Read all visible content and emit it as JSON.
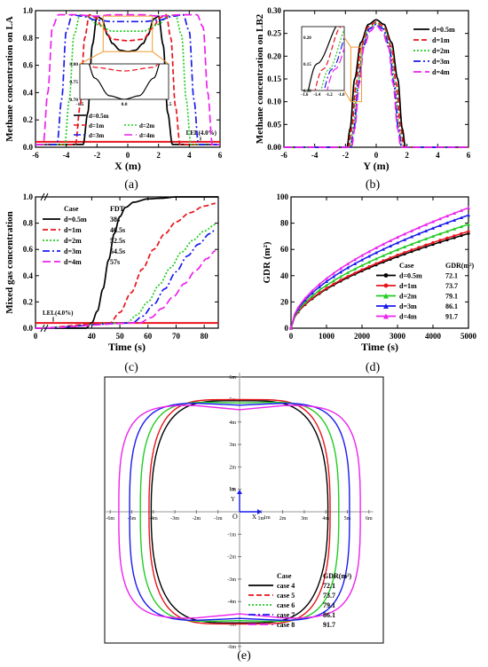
{
  "figure": {
    "panels": [
      "(a)",
      "(b)",
      "(c)",
      "(d)",
      "(e)"
    ]
  },
  "colors": {
    "d05": "#000000",
    "d1": "#e8141c",
    "d2": "#22cc22",
    "d3": "#1a1aee",
    "d4": "#ee22ee",
    "lel": "#e8141c",
    "inset_box": "#f29a2e"
  },
  "chart_data": [
    {
      "id": "a",
      "type": "line",
      "xlabel": "X (m)",
      "ylabel": "Methane concentration on LA",
      "xlim": [
        -6,
        6
      ],
      "ylim": [
        0,
        1.0
      ],
      "xticks": [
        "-6",
        "-4",
        "-2",
        "0",
        "2",
        "4",
        "6"
      ],
      "yticks": [
        "0.0",
        "0.2",
        "0.4",
        "0.6",
        "0.8",
        "1.0"
      ],
      "legend": [
        "d=0.5m",
        "d=1m",
        "d=2m",
        "d=3m",
        "d=4m"
      ],
      "annotation": "LEL(4.0%)",
      "lel_value": 0.04,
      "inset": {
        "xticks": [
          "-1.5",
          "0.0",
          "1.5"
        ],
        "yticks": [
          "0.70",
          "0.75",
          "0.80"
        ],
        "xlim": [
          -1.5,
          1.5
        ],
        "ylim": [
          0.7,
          0.8
        ]
      },
      "series": [
        {
          "name": "d=0.5m",
          "x": [
            -6,
            -2.9,
            -2.6,
            -2.3,
            -2.0,
            -1.7,
            -1.3,
            -1.0,
            -0.5,
            0,
            0.5,
            1.0,
            1.3,
            1.7,
            2.0,
            2.3,
            2.6,
            2.9,
            6
          ],
          "y": [
            0.02,
            0.02,
            0.25,
            0.75,
            0.96,
            0.94,
            0.82,
            0.76,
            0.71,
            0.7,
            0.71,
            0.76,
            0.82,
            0.94,
            0.96,
            0.75,
            0.25,
            0.02,
            0.02
          ]
        },
        {
          "name": "d=1m",
          "x": [
            -6,
            -3.4,
            -3.1,
            -2.8,
            -2.5,
            -2.1,
            -1.6,
            -1.0,
            0,
            1.0,
            1.6,
            2.1,
            2.5,
            2.8,
            3.1,
            3.4,
            6
          ],
          "y": [
            0.02,
            0.02,
            0.3,
            0.8,
            0.97,
            0.95,
            0.87,
            0.79,
            0.78,
            0.79,
            0.87,
            0.95,
            0.97,
            0.8,
            0.3,
            0.02,
            0.02
          ]
        },
        {
          "name": "d=2m",
          "x": [
            -6,
            -4.1,
            -3.8,
            -3.5,
            -3.1,
            -2.6,
            -2.0,
            -1.0,
            0,
            1.0,
            2.0,
            2.6,
            3.1,
            3.5,
            3.8,
            4.1,
            6
          ],
          "y": [
            0.02,
            0.02,
            0.35,
            0.82,
            0.97,
            0.96,
            0.9,
            0.85,
            0.85,
            0.85,
            0.9,
            0.96,
            0.97,
            0.82,
            0.35,
            0.02,
            0.02
          ]
        },
        {
          "name": "d=3m",
          "x": [
            -6,
            -4.6,
            -4.3,
            -4.0,
            -3.6,
            -3.0,
            -2.0,
            -1.0,
            0,
            1.0,
            2.0,
            3.0,
            3.6,
            4.0,
            4.3,
            4.6,
            6
          ],
          "y": [
            0.02,
            0.02,
            0.35,
            0.85,
            0.97,
            0.96,
            0.93,
            0.92,
            0.92,
            0.92,
            0.93,
            0.96,
            0.97,
            0.85,
            0.35,
            0.02,
            0.02
          ]
        },
        {
          "name": "d=4m",
          "x": [
            -6,
            -5.5,
            -5.2,
            -4.9,
            -4.5,
            -3.5,
            -2.0,
            -1.0,
            0,
            1.0,
            2.0,
            3.5,
            4.5,
            4.9,
            5.2,
            5.5,
            6
          ],
          "y": [
            0.02,
            0.02,
            0.4,
            0.88,
            0.97,
            0.97,
            0.96,
            0.97,
            0.97,
            0.97,
            0.96,
            0.97,
            0.97,
            0.88,
            0.4,
            0.02,
            0.02
          ]
        }
      ]
    },
    {
      "id": "b",
      "type": "line",
      "xlabel": "Y (m)",
      "ylabel": "Methane concentration on LB2",
      "xlim": [
        -6,
        6
      ],
      "ylim": [
        0,
        0.3
      ],
      "xticks": [
        "-6",
        "-4",
        "-2",
        "0",
        "2",
        "4",
        "6"
      ],
      "yticks": [
        "0.00",
        "0.05",
        "0.10",
        "0.15",
        "0.20",
        "0.25",
        "0.30"
      ],
      "legend": [
        "d=0.5m",
        "d=1m",
        "d=2m",
        "d=3m",
        "d=4m"
      ],
      "inset": {
        "xticks": [
          "-1.6",
          "-1.4",
          "-1.2",
          "-1.0"
        ],
        "yticks": [
          "0.10",
          "0.15",
          "0.20"
        ],
        "xlim": [
          -1.65,
          -0.95
        ],
        "ylim": [
          0.1,
          0.22
        ]
      },
      "series": [
        {
          "name": "d=0.5m",
          "x": [
            -6,
            -1.9,
            -1.7,
            -1.4,
            -1.0,
            -0.5,
            0,
            0.5,
            1.0,
            1.4,
            1.7,
            1.9,
            6
          ],
          "y": [
            0.0,
            0.0,
            0.04,
            0.15,
            0.23,
            0.27,
            0.28,
            0.27,
            0.23,
            0.15,
            0.04,
            0.0,
            0.0
          ]
        },
        {
          "name": "d=1m",
          "x": [
            -6,
            -1.8,
            -1.6,
            -1.3,
            -1.0,
            -0.5,
            0,
            0.5,
            1.0,
            1.3,
            1.6,
            1.8,
            6
          ],
          "y": [
            0.0,
            0.0,
            0.04,
            0.14,
            0.22,
            0.265,
            0.275,
            0.265,
            0.22,
            0.14,
            0.04,
            0.0,
            0.0
          ]
        },
        {
          "name": "d=2m",
          "x": [
            -6,
            -1.7,
            -1.5,
            -1.2,
            -0.9,
            -0.5,
            0,
            0.5,
            0.9,
            1.2,
            1.5,
            1.7,
            6
          ],
          "y": [
            0.0,
            0.0,
            0.04,
            0.14,
            0.22,
            0.26,
            0.272,
            0.26,
            0.22,
            0.14,
            0.04,
            0.0,
            0.0
          ]
        },
        {
          "name": "d=3m",
          "x": [
            -6,
            -1.65,
            -1.45,
            -1.15,
            -0.85,
            -0.45,
            0,
            0.45,
            0.85,
            1.15,
            1.45,
            1.65,
            6
          ],
          "y": [
            0.0,
            0.0,
            0.04,
            0.14,
            0.22,
            0.26,
            0.27,
            0.26,
            0.22,
            0.14,
            0.04,
            0.0,
            0.0
          ]
        },
        {
          "name": "d=4m",
          "x": [
            -6,
            -1.6,
            -1.4,
            -1.1,
            -0.8,
            -0.4,
            0,
            0.4,
            0.8,
            1.1,
            1.4,
            1.6,
            6
          ],
          "y": [
            0.0,
            0.0,
            0.04,
            0.14,
            0.22,
            0.255,
            0.268,
            0.255,
            0.22,
            0.14,
            0.04,
            0.0,
            0.0
          ]
        }
      ]
    },
    {
      "id": "c",
      "type": "line",
      "xlabel": "Time (s)",
      "ylabel": "Mixed gas concentration",
      "xlim": [
        20,
        85
      ],
      "ylim": [
        0,
        1.0
      ],
      "xticks": [
        "0",
        "40",
        "50",
        "60",
        "70",
        "80"
      ],
      "yticks": [
        "0.0",
        "0.2",
        "0.4",
        "0.6",
        "0.8",
        "1.0"
      ],
      "legend_header": [
        "Case",
        "FDT"
      ],
      "legend": [
        {
          "name": "d=0.5m",
          "value": "38s"
        },
        {
          "name": "d=1m",
          "value": "46.5s"
        },
        {
          "name": "d=2m",
          "value": "52.5s"
        },
        {
          "name": "d=3m",
          "value": "54.5s"
        },
        {
          "name": "d=4m",
          "value": "57s"
        }
      ],
      "annotation": "LEL(4.0%)",
      "lel_value": 0.04,
      "series": [
        {
          "name": "d=0.5m",
          "x": [
            20,
            38,
            40,
            42,
            44,
            46,
            48,
            50,
            52,
            55,
            60,
            65,
            70,
            85
          ],
          "y": [
            0,
            0,
            0.04,
            0.13,
            0.3,
            0.52,
            0.72,
            0.85,
            0.92,
            0.96,
            0.985,
            0.99,
            1.0,
            1.0
          ]
        },
        {
          "name": "d=1m",
          "x": [
            20,
            46.5,
            50,
            54,
            58,
            62,
            66,
            70,
            75,
            80,
            84
          ],
          "y": [
            0,
            0.04,
            0.12,
            0.27,
            0.45,
            0.6,
            0.72,
            0.81,
            0.88,
            0.93,
            0.95
          ]
        },
        {
          "name": "d=2m",
          "x": [
            20,
            52.5,
            56,
            60,
            64,
            68,
            72,
            76,
            80,
            84
          ],
          "y": [
            0,
            0.04,
            0.1,
            0.2,
            0.33,
            0.46,
            0.58,
            0.67,
            0.74,
            0.79
          ]
        },
        {
          "name": "d=3m",
          "x": [
            20,
            54.5,
            58,
            62,
            66,
            70,
            74,
            78,
            82,
            84
          ],
          "y": [
            0,
            0.04,
            0.09,
            0.18,
            0.3,
            0.43,
            0.55,
            0.64,
            0.72,
            0.75
          ]
        },
        {
          "name": "d=4m",
          "x": [
            20,
            57,
            61,
            65,
            69,
            73,
            77,
            81,
            84
          ],
          "y": [
            0,
            0.04,
            0.08,
            0.15,
            0.24,
            0.34,
            0.44,
            0.53,
            0.59
          ]
        }
      ]
    },
    {
      "id": "d",
      "type": "line",
      "xlabel": "Time (s)",
      "ylabel": "GDR (m²)",
      "xlim": [
        0,
        5000
      ],
      "ylim": [
        0,
        100
      ],
      "xticks": [
        "0",
        "1000",
        "2000",
        "3000",
        "4000",
        "5000"
      ],
      "yticks": [
        "0",
        "20",
        "40",
        "60",
        "80",
        "100"
      ],
      "legend_header": [
        "Case",
        "GDR(m²)"
      ],
      "legend": [
        {
          "name": "d=0.5m",
          "value": "72.1"
        },
        {
          "name": "d=1m",
          "value": "73.7"
        },
        {
          "name": "d=2m",
          "value": "79.1"
        },
        {
          "name": "d=3m",
          "value": "86.1"
        },
        {
          "name": "d=4m",
          "value": "91.7"
        }
      ],
      "series": [
        {
          "name": "d=0.5m",
          "final": 72.1
        },
        {
          "name": "d=1m",
          "final": 73.7
        },
        {
          "name": "d=2m",
          "final": 79.1
        },
        {
          "name": "d=3m",
          "final": 86.1
        },
        {
          "name": "d=4m",
          "final": 91.7
        }
      ]
    },
    {
      "id": "e",
      "type": "line",
      "axis_labels": {
        "x": "X",
        "y": "Y",
        "origin": "O",
        "unit_x": "1m",
        "unit_y": "1m"
      },
      "xlim": [
        -6,
        6
      ],
      "ylim": [
        -6,
        6
      ],
      "xticks": [
        "-6m",
        "-5m",
        "-4m",
        "-3m",
        "-2m",
        "-1m",
        "1m",
        "2m",
        "3m",
        "4m",
        "5m",
        "6m"
      ],
      "yticks": [
        "6m",
        "5m",
        "4m",
        "3m",
        "2m",
        "1m",
        "-1m",
        "-2m",
        "-3m",
        "-4m",
        "-5m",
        "-6m"
      ],
      "legend_header": [
        "Case",
        "GDR(m²)"
      ],
      "legend": [
        {
          "name": "case 4",
          "value": "72.1"
        },
        {
          "name": "case 5",
          "value": "73.7"
        },
        {
          "name": "case 6",
          "value": "79.1"
        },
        {
          "name": "case 7",
          "value": "86.1"
        },
        {
          "name": "case 8",
          "value": "91.7"
        }
      ],
      "series": [
        {
          "name": "case 4",
          "half_width": 4.1,
          "half_height": 4.95,
          "top_dip": 0
        },
        {
          "name": "case 5",
          "half_width": 4.2,
          "half_height": 5.0,
          "top_dip": 0
        },
        {
          "name": "case 6",
          "half_width": 4.6,
          "half_height": 4.9,
          "top_dip": 0.05
        },
        {
          "name": "case 7",
          "half_width": 5.1,
          "half_height": 4.85,
          "top_dip": 0.1
        },
        {
          "name": "case 8",
          "half_width": 5.6,
          "half_height": 4.75,
          "top_dip": 0.2
        }
      ]
    }
  ]
}
